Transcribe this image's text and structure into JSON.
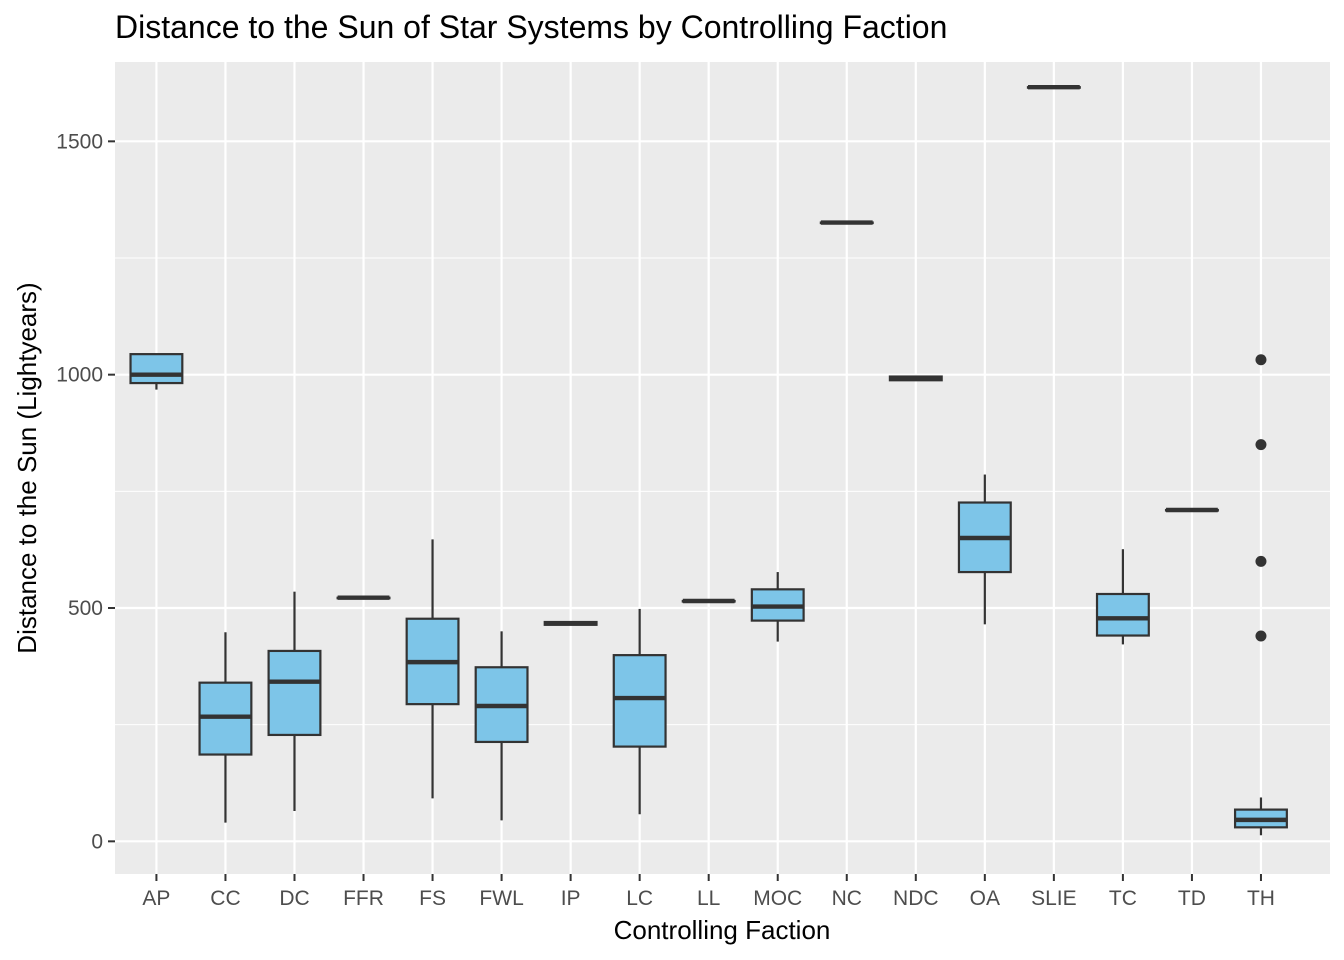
{
  "chart_data": {
    "type": "boxplot",
    "title": "Distance to the Sun of Star Systems by Controlling Faction",
    "xlabel": "Controlling Faction",
    "ylabel": "Distance to the Sun (Lightyears)",
    "ylim": [
      -70,
      1670
    ],
    "yticks": [
      0,
      500,
      1000,
      1500
    ],
    "grid": true,
    "fill_color": "#7DC5E8",
    "categories": [
      "AP",
      "CC",
      "DC",
      "FFR",
      "FS",
      "FWL",
      "IP",
      "LC",
      "LL",
      "MOC",
      "NC",
      "NDC",
      "OA",
      "SLIE",
      "TC",
      "TD",
      "TH"
    ],
    "boxes": [
      {
        "label": "AP",
        "whisker_low": 968,
        "q1": 982,
        "median": 1000,
        "q3": 1044,
        "whisker_high": 1044,
        "outliers": []
      },
      {
        "label": "CC",
        "whisker_low": 40,
        "q1": 186,
        "median": 267,
        "q3": 340,
        "whisker_high": 448,
        "outliers": []
      },
      {
        "label": "DC",
        "whisker_low": 65,
        "q1": 228,
        "median": 342,
        "q3": 408,
        "whisker_high": 535,
        "outliers": []
      },
      {
        "label": "FFR",
        "whisker_low": 522,
        "q1": 522,
        "median": 522,
        "q3": 522,
        "whisker_high": 522,
        "outliers": []
      },
      {
        "label": "FS",
        "whisker_low": 92,
        "q1": 294,
        "median": 384,
        "q3": 477,
        "whisker_high": 647,
        "outliers": []
      },
      {
        "label": "FWL",
        "whisker_low": 45,
        "q1": 213,
        "median": 290,
        "q3": 373,
        "whisker_high": 450,
        "outliers": []
      },
      {
        "label": "IP",
        "whisker_low": 464,
        "q1": 464,
        "median": 467,
        "q3": 470,
        "whisker_high": 470,
        "outliers": []
      },
      {
        "label": "LC",
        "whisker_low": 58,
        "q1": 203,
        "median": 307,
        "q3": 399,
        "whisker_high": 498,
        "outliers": []
      },
      {
        "label": "LL",
        "whisker_low": 515,
        "q1": 515,
        "median": 515,
        "q3": 515,
        "whisker_high": 515,
        "outliers": []
      },
      {
        "label": "MOC",
        "whisker_low": 428,
        "q1": 473,
        "median": 503,
        "q3": 540,
        "whisker_high": 577,
        "outliers": []
      },
      {
        "label": "NC",
        "whisker_low": 1326,
        "q1": 1326,
        "median": 1326,
        "q3": 1326,
        "whisker_high": 1326,
        "outliers": []
      },
      {
        "label": "NDC",
        "whisker_low": 988,
        "q1": 988,
        "median": 992,
        "q3": 996,
        "whisker_high": 996,
        "outliers": []
      },
      {
        "label": "OA",
        "whisker_low": 465,
        "q1": 577,
        "median": 650,
        "q3": 726,
        "whisker_high": 786,
        "outliers": []
      },
      {
        "label": "SLIE",
        "whisker_low": 1616,
        "q1": 1616,
        "median": 1616,
        "q3": 1616,
        "whisker_high": 1616,
        "outliers": []
      },
      {
        "label": "TC",
        "whisker_low": 422,
        "q1": 441,
        "median": 478,
        "q3": 530,
        "whisker_high": 626,
        "outliers": []
      },
      {
        "label": "TD",
        "whisker_low": 710,
        "q1": 710,
        "median": 710,
        "q3": 710,
        "whisker_high": 710,
        "outliers": []
      },
      {
        "label": "TH",
        "whisker_low": 13,
        "q1": 30,
        "median": 46,
        "q3": 68,
        "whisker_high": 94,
        "outliers": [
          1032,
          850,
          600,
          440
        ]
      }
    ]
  }
}
